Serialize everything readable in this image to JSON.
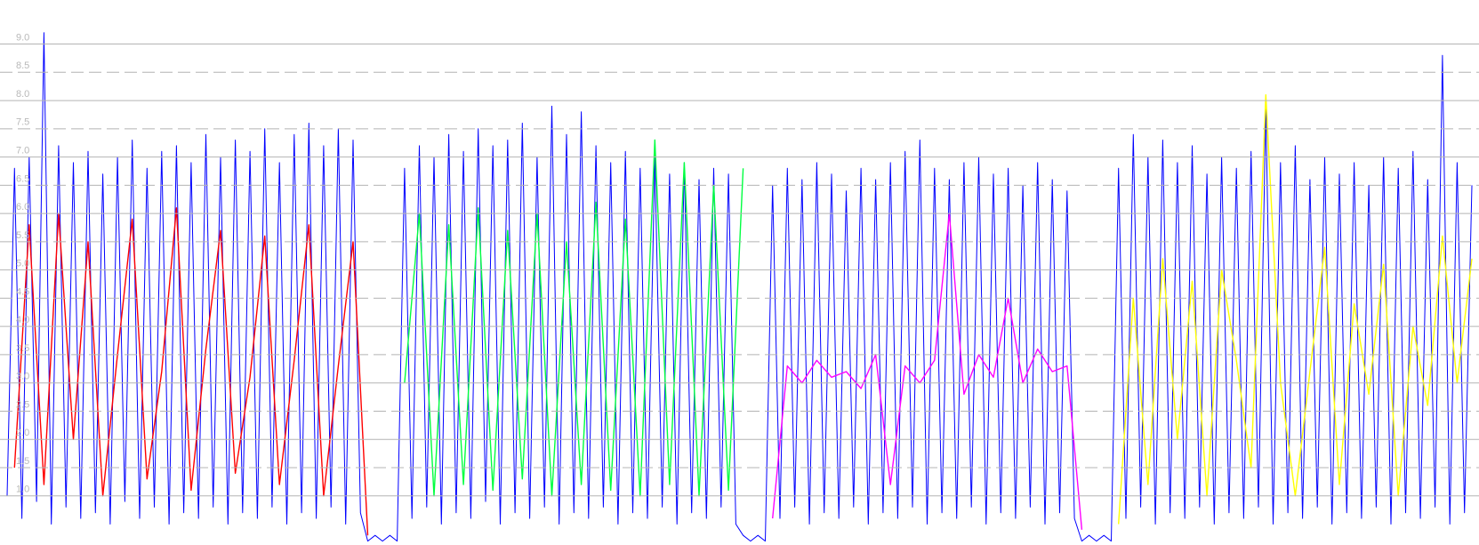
{
  "chart_data": {
    "type": "line",
    "xlim": [
      0,
      199
    ],
    "ylim": [
      0.13,
      9.78
    ],
    "grid": true,
    "yticks": [
      {
        "value": 1,
        "label": "1.0"
      },
      1.5,
      {
        "value": 2,
        "label": "2.0"
      },
      2.5,
      {
        "value": 3,
        "label": "3.0"
      },
      3.5,
      {
        "value": 4,
        "label": "4.0"
      },
      4.5,
      {
        "value": 5,
        "label": "5.0"
      },
      5.5,
      {
        "value": 6,
        "label": "6.0"
      },
      6.5,
      {
        "value": 7,
        "label": "7.0"
      },
      7.5,
      {
        "value": 8,
        "label": "8.0"
      },
      8.5,
      {
        "value": 9,
        "label": "9.0"
      }
    ],
    "x": [
      0,
      1,
      2,
      3,
      4,
      5,
      6,
      7,
      8,
      9,
      10,
      11,
      12,
      13,
      14,
      15,
      16,
      17,
      18,
      19,
      20,
      21,
      22,
      23,
      24,
      25,
      26,
      27,
      28,
      29,
      30,
      31,
      32,
      33,
      34,
      35,
      36,
      37,
      38,
      39,
      40,
      41,
      42,
      43,
      44,
      45,
      46,
      47,
      48,
      49,
      50,
      51,
      52,
      53,
      54,
      55,
      56,
      57,
      58,
      59,
      60,
      61,
      62,
      63,
      64,
      65,
      66,
      67,
      68,
      69,
      70,
      71,
      72,
      73,
      74,
      75,
      76,
      77,
      78,
      79,
      80,
      81,
      82,
      83,
      84,
      85,
      86,
      87,
      88,
      89,
      90,
      91,
      92,
      93,
      94,
      95,
      96,
      97,
      98,
      99,
      100,
      101,
      102,
      103,
      104,
      105,
      106,
      107,
      108,
      109,
      110,
      111,
      112,
      113,
      114,
      115,
      116,
      117,
      118,
      119,
      120,
      121,
      122,
      123,
      124,
      125,
      126,
      127,
      128,
      129,
      130,
      131,
      132,
      133,
      134,
      135,
      136,
      137,
      138,
      139,
      140,
      141,
      142,
      143,
      144,
      145,
      146,
      147,
      148,
      149,
      150,
      151,
      152,
      153,
      154,
      155,
      156,
      157,
      158,
      159,
      160,
      161,
      162,
      163,
      164,
      165,
      166,
      167,
      168,
      169,
      170,
      171,
      172,
      173,
      174,
      175,
      176,
      177,
      178,
      179,
      180,
      181,
      182,
      183,
      184,
      185,
      186,
      187,
      188,
      189,
      190,
      191,
      192,
      193,
      194,
      195,
      196,
      197,
      198,
      199
    ],
    "series": [
      {
        "color": "#0000ff",
        "values": [
          1.0,
          6.8,
          0.6,
          7.0,
          0.9,
          9.2,
          0.5,
          7.2,
          0.8,
          6.9,
          0.6,
          7.1,
          0.7,
          6.7,
          0.5,
          7.0,
          0.9,
          7.3,
          0.6,
          6.8,
          0.8,
          7.1,
          0.5,
          7.2,
          0.7,
          6.9,
          0.6,
          7.4,
          0.8,
          7.0,
          0.5,
          7.3,
          0.7,
          7.1,
          0.6,
          7.5,
          0.8,
          6.9,
          0.5,
          7.4,
          0.7,
          7.6,
          0.6,
          7.2,
          0.8,
          7.5,
          0.5,
          7.3,
          0.7,
          0.2,
          0.3,
          0.2,
          0.3,
          0.2,
          6.8,
          0.6,
          7.2,
          0.8,
          7.0,
          0.5,
          7.4,
          0.7,
          7.1,
          0.6,
          7.5,
          0.9,
          7.2,
          0.5,
          7.3,
          0.7,
          7.6,
          0.6,
          7.0,
          0.8,
          7.9,
          0.5,
          7.4,
          0.7,
          7.8,
          0.6,
          7.2,
          0.8,
          6.9,
          0.5,
          7.1,
          0.7,
          6.8,
          0.6,
          7.0,
          0.8,
          6.7,
          0.5,
          6.9,
          0.7,
          6.6,
          0.6,
          6.8,
          0.8,
          6.7,
          0.5,
          0.3,
          0.2,
          0.3,
          0.2,
          6.5,
          0.6,
          6.8,
          0.8,
          6.6,
          0.5,
          6.9,
          0.7,
          6.7,
          0.6,
          6.4,
          0.8,
          6.8,
          0.5,
          6.6,
          0.7,
          6.9,
          0.6,
          7.1,
          0.8,
          7.3,
          0.5,
          6.8,
          0.7,
          6.6,
          0.6,
          6.9,
          0.8,
          7.0,
          0.5,
          6.7,
          0.7,
          6.8,
          0.6,
          6.5,
          0.8,
          6.9,
          0.5,
          6.6,
          0.7,
          6.4,
          0.6,
          0.2,
          0.3,
          0.2,
          0.3,
          0.2,
          6.8,
          0.6,
          7.4,
          0.8,
          7.0,
          0.5,
          7.3,
          0.7,
          6.9,
          0.6,
          7.2,
          0.8,
          6.7,
          0.5,
          7.0,
          0.7,
          6.8,
          0.6,
          7.1,
          0.8,
          7.9,
          0.5,
          6.9,
          0.7,
          7.2,
          0.6,
          6.6,
          0.8,
          7.0,
          0.5,
          6.7,
          0.7,
          6.9,
          0.6,
          6.5,
          0.8,
          7.0,
          0.5,
          6.8,
          0.7,
          7.1,
          0.6,
          6.6,
          0.8,
          8.8,
          0.5,
          6.9,
          0.7,
          6.5
        ]
      },
      {
        "color": "#ff0000",
        "x": [
          1,
          3,
          5,
          7,
          9,
          11,
          13,
          15,
          17,
          19,
          21,
          23,
          25,
          27,
          29,
          31,
          33,
          35,
          37,
          39,
          41,
          43,
          45,
          47,
          49
        ],
        "values": [
          1.5,
          5.8,
          1.2,
          6.0,
          2.0,
          5.5,
          1.0,
          3.5,
          5.9,
          1.3,
          3.2,
          6.1,
          1.1,
          3.6,
          5.7,
          1.4,
          3.1,
          5.6,
          1.2,
          3.4,
          5.8,
          1.0,
          3.3,
          5.5,
          0.3
        ]
      },
      {
        "color": "#00ff40",
        "x": [
          54,
          56,
          58,
          60,
          62,
          64,
          66,
          68,
          70,
          72,
          74,
          76,
          78,
          80,
          82,
          84,
          86,
          88,
          90,
          92,
          94,
          96,
          98,
          100
        ],
        "values": [
          3.0,
          6.0,
          1.0,
          5.8,
          1.2,
          6.1,
          1.1,
          5.7,
          1.3,
          6.0,
          1.0,
          5.5,
          1.2,
          6.2,
          1.1,
          5.9,
          1.0,
          7.3,
          1.2,
          6.9,
          1.0,
          6.5,
          1.1,
          6.8
        ]
      },
      {
        "color": "#ff00ff",
        "x": [
          104,
          106,
          108,
          110,
          112,
          114,
          116,
          118,
          120,
          122,
          124,
          126,
          128,
          130,
          132,
          134,
          136,
          138,
          140,
          142,
          144,
          146
        ],
        "values": [
          0.6,
          3.3,
          3.0,
          3.4,
          3.1,
          3.2,
          2.9,
          3.5,
          1.2,
          3.3,
          3.0,
          3.4,
          6.0,
          2.8,
          3.5,
          3.1,
          4.5,
          3.0,
          3.6,
          3.2,
          3.3,
          0.4
        ]
      },
      {
        "color": "#ffff00",
        "x": [
          151,
          153,
          155,
          157,
          159,
          161,
          163,
          165,
          167,
          169,
          171,
          173,
          175,
          177,
          179,
          181,
          183,
          185,
          187,
          189,
          191,
          193,
          195,
          197,
          199
        ],
        "values": [
          0.5,
          4.5,
          1.2,
          5.2,
          2.0,
          4.8,
          1.0,
          5.0,
          3.4,
          1.5,
          8.1,
          3.0,
          1.0,
          3.2,
          5.4,
          1.2,
          4.4,
          2.8,
          5.1,
          1.0,
          4.0,
          2.6,
          5.6,
          3.0,
          5.2
        ]
      }
    ]
  }
}
